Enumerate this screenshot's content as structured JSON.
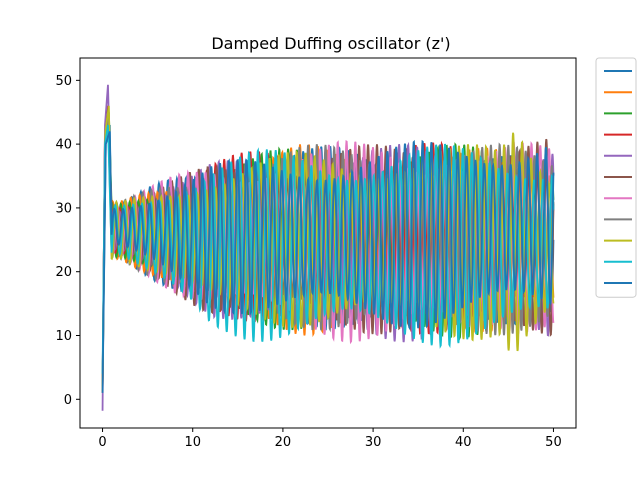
{
  "chart_data": {
    "type": "line",
    "title": "Damped Duffing oscillator (z')",
    "xlabel": "",
    "ylabel": "",
    "xlim": [
      -2.5,
      52.5
    ],
    "ylim": [
      -4.5,
      53.5
    ],
    "x_ticks": [
      0,
      10,
      20,
      30,
      40,
      50
    ],
    "y_ticks": [
      0,
      10,
      20,
      30,
      40,
      50
    ],
    "grid": false,
    "legend": {
      "placement": "outside-right-top",
      "entries": [
        "",
        "",
        "",
        "",
        "",
        "",
        "",
        "",
        "",
        "",
        ""
      ]
    },
    "series": [
      {
        "color": "#1f77b4",
        "init": [
          2.4,
          40.0
        ],
        "peak": [
          0.8,
          43.0
        ],
        "x_end": 50.0,
        "env_upper": [
          [
            2,
            31
          ],
          [
            12,
            38
          ],
          [
            22,
            40
          ],
          [
            32,
            39
          ],
          [
            50,
            38
          ]
        ],
        "env_lower": [
          [
            2,
            22
          ],
          [
            12,
            13
          ],
          [
            22,
            11
          ],
          [
            32,
            11
          ],
          [
            50,
            12
          ]
        ]
      },
      {
        "color": "#ff7f0e",
        "init": [
          1.0,
          42.0
        ],
        "peak": [
          0.6,
          46.0
        ],
        "x_end": 50.0,
        "env_upper": [
          [
            2,
            31
          ],
          [
            12,
            37
          ],
          [
            22,
            40
          ],
          [
            32,
            40
          ],
          [
            50,
            39
          ]
        ],
        "env_lower": [
          [
            2,
            22
          ],
          [
            12,
            13
          ],
          [
            22,
            10
          ],
          [
            32,
            10
          ],
          [
            50,
            11
          ]
        ]
      },
      {
        "color": "#2ca02c",
        "init": [
          1.5,
          41.0
        ],
        "peak": [
          0.7,
          45.0
        ],
        "x_end": 50.0,
        "env_upper": [
          [
            2,
            31
          ],
          [
            12,
            37
          ],
          [
            22,
            40
          ],
          [
            32,
            40
          ],
          [
            50,
            40
          ]
        ],
        "env_lower": [
          [
            2,
            22
          ],
          [
            12,
            14
          ],
          [
            22,
            10
          ],
          [
            32,
            10
          ],
          [
            50,
            9
          ]
        ]
      },
      {
        "color": "#d62728",
        "init": [
          1.2,
          42.0
        ],
        "peak": [
          0.6,
          46.0
        ],
        "x_end": 50.0,
        "env_upper": [
          [
            2,
            31
          ],
          [
            12,
            38
          ],
          [
            22,
            40
          ],
          [
            32,
            40
          ],
          [
            50,
            41
          ]
        ],
        "env_lower": [
          [
            2,
            22
          ],
          [
            12,
            13
          ],
          [
            22,
            11
          ],
          [
            32,
            10
          ],
          [
            50,
            11
          ]
        ]
      },
      {
        "color": "#9467bd",
        "init": [
          -1.8,
          43.0
        ],
        "peak": [
          0.6,
          49.3
        ],
        "x_end": 50.0,
        "env_upper": [
          [
            2,
            31
          ],
          [
            12,
            37
          ],
          [
            22,
            40
          ],
          [
            32,
            40
          ],
          [
            50,
            40
          ]
        ],
        "env_lower": [
          [
            2,
            22
          ],
          [
            12,
            13
          ],
          [
            22,
            10
          ],
          [
            32,
            9
          ],
          [
            50,
            8
          ]
        ]
      },
      {
        "color": "#8c564b",
        "init": [
          1.8,
          41.0
        ],
        "peak": [
          0.6,
          45.5
        ],
        "x_end": 50.0,
        "env_upper": [
          [
            2,
            31
          ],
          [
            12,
            37
          ],
          [
            22,
            40
          ],
          [
            32,
            40
          ],
          [
            50,
            41
          ]
        ],
        "env_lower": [
          [
            2,
            22
          ],
          [
            12,
            13
          ],
          [
            22,
            11
          ],
          [
            32,
            10
          ],
          [
            50,
            10
          ]
        ]
      },
      {
        "color": "#e377c2",
        "init": [
          1.5,
          41.0
        ],
        "peak": [
          0.6,
          45.0
        ],
        "x_end": 50.0,
        "env_upper": [
          [
            2,
            31
          ],
          [
            12,
            38
          ],
          [
            22,
            40
          ],
          [
            32,
            41
          ],
          [
            50,
            40
          ]
        ],
        "env_lower": [
          [
            2,
            22
          ],
          [
            12,
            13
          ],
          [
            22,
            10
          ],
          [
            32,
            8
          ],
          [
            50,
            11
          ]
        ]
      },
      {
        "color": "#7f7f7f",
        "init": [
          2.0,
          41.0
        ],
        "peak": [
          0.6,
          45.0
        ],
        "x_end": 50.0,
        "env_upper": [
          [
            2,
            31
          ],
          [
            12,
            37
          ],
          [
            22,
            40
          ],
          [
            32,
            40
          ],
          [
            50,
            40
          ]
        ],
        "env_lower": [
          [
            2,
            22
          ],
          [
            12,
            13
          ],
          [
            22,
            11
          ],
          [
            32,
            10
          ],
          [
            50,
            10
          ]
        ]
      },
      {
        "color": "#bcbd22",
        "init": [
          1.2,
          42.0
        ],
        "peak": [
          0.7,
          46.0
        ],
        "x_end": 50.0,
        "env_upper": [
          [
            2,
            31
          ],
          [
            12,
            37
          ],
          [
            22,
            39
          ],
          [
            32,
            40
          ],
          [
            44,
            40
          ],
          [
            45.8,
            46
          ],
          [
            50,
            38
          ]
        ],
        "env_lower": [
          [
            2,
            22
          ],
          [
            12,
            13
          ],
          [
            22,
            11
          ],
          [
            32,
            10
          ],
          [
            44,
            9
          ],
          [
            45.6,
            3
          ],
          [
            50,
            10
          ]
        ]
      },
      {
        "color": "#17becf",
        "init": [
          4.0,
          40.0
        ],
        "peak": [
          0.6,
          43.0
        ],
        "x_end": 50.0,
        "env_upper": [
          [
            2,
            31
          ],
          [
            12,
            38
          ],
          [
            22,
            40
          ],
          [
            32,
            40
          ],
          [
            50,
            40
          ]
        ],
        "env_lower": [
          [
            2,
            22
          ],
          [
            12,
            9
          ],
          [
            22,
            9
          ],
          [
            32,
            8
          ],
          [
            50,
            9
          ]
        ]
      },
      {
        "color": "#1f77b4",
        "init": [
          1.0,
          40.0
        ],
        "peak": [
          0.8,
          42.0
        ],
        "x_end": 50.0,
        "env_upper": [
          [
            2,
            31
          ],
          [
            12,
            37
          ],
          [
            22,
            39
          ],
          [
            32,
            40
          ],
          [
            50,
            43
          ]
        ],
        "env_lower": [
          [
            2,
            23
          ],
          [
            12,
            14
          ],
          [
            22,
            12
          ],
          [
            32,
            11
          ],
          [
            50,
            12
          ]
        ]
      }
    ]
  }
}
